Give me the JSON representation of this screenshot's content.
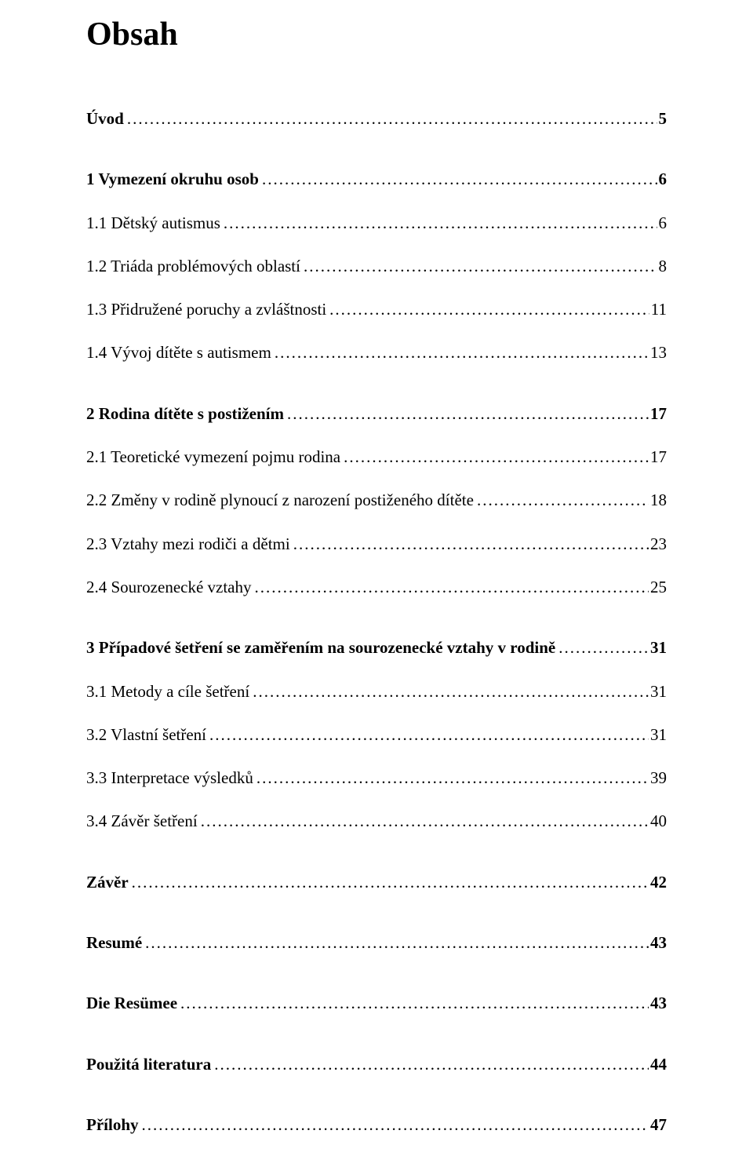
{
  "title": "Obsah",
  "entries": [
    {
      "label": "Úvod",
      "page": "5",
      "bold": true,
      "spaceAfter": "med"
    },
    {
      "label": "1 Vymezení okruhu osob",
      "page": "6",
      "bold": true,
      "spaceAfter": "small"
    },
    {
      "label": "1.1 Dětský autismus",
      "page": "6",
      "bold": false,
      "spaceAfter": "small"
    },
    {
      "label": "1.2 Triáda problémových oblastí",
      "page": "8",
      "bold": false,
      "spaceAfter": "small"
    },
    {
      "label": "1.3 Přidružené poruchy a zvláštnosti",
      "page": "11",
      "bold": false,
      "spaceAfter": "small"
    },
    {
      "label": "1.4 Vývoj dítěte s autismem",
      "page": "13",
      "bold": false,
      "spaceAfter": "med"
    },
    {
      "label": "2 Rodina dítěte s postižením",
      "page": "17",
      "bold": true,
      "spaceAfter": "small"
    },
    {
      "label": "2.1 Teoretické vymezení pojmu rodina",
      "page": "17",
      "bold": false,
      "spaceAfter": "small"
    },
    {
      "label": "2.2 Změny v rodině plynoucí z narození postiženého dítěte",
      "page": "18",
      "bold": false,
      "spaceAfter": "small"
    },
    {
      "label": "2.3 Vztahy mezi rodiči a dětmi",
      "page": "23",
      "bold": false,
      "spaceAfter": "small"
    },
    {
      "label": "2.4 Sourozenecké vztahy",
      "page": "25",
      "bold": false,
      "spaceAfter": "med"
    },
    {
      "label": "3 Případové šetření se zaměřením na sourozenecké vztahy v rodině",
      "page": "31",
      "bold": true,
      "spaceAfter": "small"
    },
    {
      "label": "3.1 Metody a cíle šetření",
      "page": "31",
      "bold": false,
      "spaceAfter": "small"
    },
    {
      "label": "3.2 Vlastní šetření",
      "page": "31",
      "bold": false,
      "spaceAfter": "small"
    },
    {
      "label": "3.3 Interpretace výsledků",
      "page": "39",
      "bold": false,
      "spaceAfter": "small"
    },
    {
      "label": "3.4 Závěr šetření",
      "page": "40",
      "bold": false,
      "spaceAfter": "med"
    },
    {
      "label": "Závěr",
      "page": "42",
      "bold": true,
      "spaceAfter": "med"
    },
    {
      "label": "Resumé",
      "page": "43",
      "bold": true,
      "spaceAfter": "med"
    },
    {
      "label": "Die Resümee",
      "page": "43",
      "bold": true,
      "spaceAfter": "med"
    },
    {
      "label": "Použitá literatura",
      "page": "44",
      "bold": true,
      "spaceAfter": "med"
    },
    {
      "label": "Přílohy",
      "page": "47",
      "bold": true,
      "spaceAfter": "none"
    }
  ]
}
